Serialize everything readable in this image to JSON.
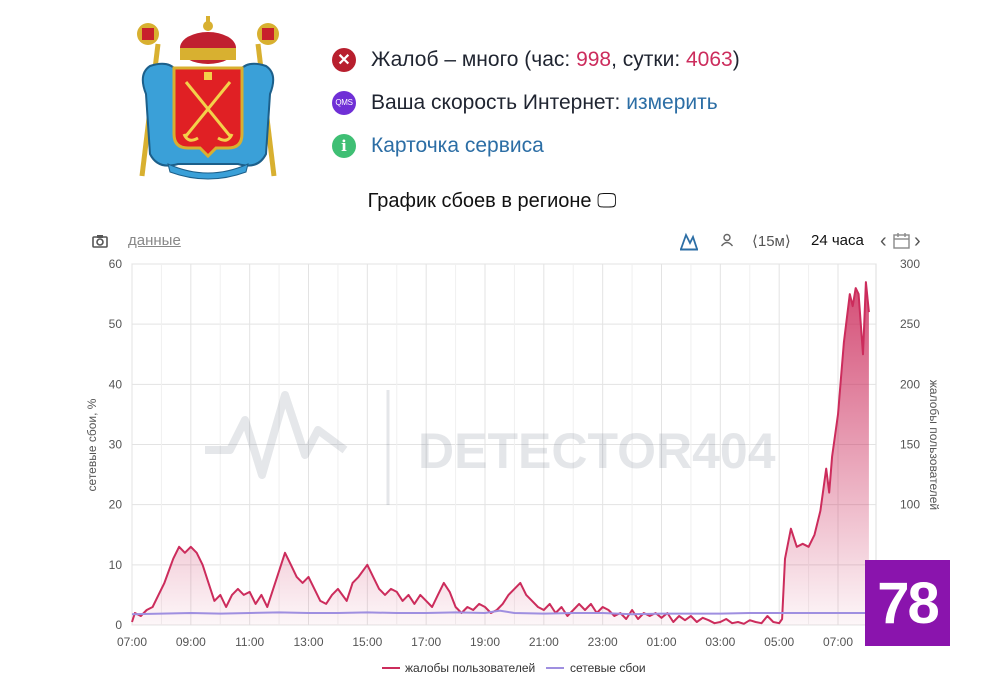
{
  "status": {
    "complaints_prefix": "Жалоб – много (час: ",
    "hour_count": "998",
    "sep": ", сутки: ",
    "day_count": "4063",
    "suffix": ")",
    "speed_label": "Ваша скорость Интернет: ",
    "speed_link": "измерить",
    "service_card": "Карточка сервиса",
    "qms_badge": "QMS",
    "x_badge": "✕",
    "i_badge": "i"
  },
  "toolbar": {
    "data_link": "данные",
    "interval": "⟨15м⟩",
    "range": "24 часа",
    "prev": "‹",
    "next": "›"
  },
  "logo": {
    "text": "78"
  },
  "watermark": {
    "text": "DETECTOR404"
  },
  "chart_data": {
    "type": "line",
    "title": "График сбоев в регионе 🖵",
    "ylabel_left": "сетевые сбои, %",
    "ylabel_right": "жалобы пользователей",
    "ylim_left": [
      0,
      60
    ],
    "ylim_right": [
      0,
      300
    ],
    "yticks_left": [
      "0",
      "10",
      "20",
      "30",
      "40",
      "50",
      "60"
    ],
    "yticks_right": [
      "100",
      "150",
      "200",
      "250",
      "300"
    ],
    "xticks": [
      "07:00",
      "09:00",
      "11:00",
      "13:00",
      "15:00",
      "17:00",
      "19:00",
      "21:00",
      "23:00",
      "01:00",
      "03:00",
      "05:00",
      "07:00"
    ],
    "grid": true,
    "legend_position": "bottom",
    "series": [
      {
        "name": "жалобы пользователей",
        "color": "#cc2c5c",
        "axis": "left",
        "values": [
          [
            0,
            0.5
          ],
          [
            0.1,
            2
          ],
          [
            0.3,
            1.5
          ],
          [
            0.5,
            2.5
          ],
          [
            0.7,
            3
          ],
          [
            0.9,
            5
          ],
          [
            1.1,
            7
          ],
          [
            1.4,
            11
          ],
          [
            1.6,
            13
          ],
          [
            1.8,
            12
          ],
          [
            2.0,
            13
          ],
          [
            2.2,
            12
          ],
          [
            2.4,
            10
          ],
          [
            2.6,
            7
          ],
          [
            2.8,
            4
          ],
          [
            3.0,
            5
          ],
          [
            3.2,
            3
          ],
          [
            3.4,
            5
          ],
          [
            3.6,
            6
          ],
          [
            3.8,
            5
          ],
          [
            4.0,
            5.5
          ],
          [
            4.2,
            3.5
          ],
          [
            4.4,
            5
          ],
          [
            4.6,
            3
          ],
          [
            4.8,
            6
          ],
          [
            5.0,
            9
          ],
          [
            5.2,
            12
          ],
          [
            5.4,
            10
          ],
          [
            5.6,
            8
          ],
          [
            5.8,
            7
          ],
          [
            6.0,
            8
          ],
          [
            6.2,
            6
          ],
          [
            6.4,
            4
          ],
          [
            6.6,
            3.5
          ],
          [
            6.8,
            5
          ],
          [
            7.0,
            6
          ],
          [
            7.3,
            4
          ],
          [
            7.5,
            7
          ],
          [
            7.7,
            8
          ],
          [
            8.0,
            10
          ],
          [
            8.2,
            8
          ],
          [
            8.4,
            6
          ],
          [
            8.6,
            5
          ],
          [
            8.8,
            6
          ],
          [
            9.0,
            5.5
          ],
          [
            9.2,
            4
          ],
          [
            9.4,
            5
          ],
          [
            9.6,
            3.5
          ],
          [
            9.8,
            5
          ],
          [
            10.0,
            4
          ],
          [
            10.2,
            3
          ],
          [
            10.4,
            5
          ],
          [
            10.6,
            7
          ],
          [
            10.8,
            5.5
          ],
          [
            11.0,
            3
          ],
          [
            11.2,
            2
          ],
          [
            11.4,
            3
          ],
          [
            11.6,
            2.5
          ],
          [
            11.8,
            3.5
          ],
          [
            12.0,
            3
          ],
          [
            12.2,
            2
          ],
          [
            12.4,
            2.5
          ],
          [
            12.6,
            3.5
          ],
          [
            12.8,
            5
          ],
          [
            13.0,
            6
          ],
          [
            13.2,
            7
          ],
          [
            13.4,
            5
          ],
          [
            13.6,
            4
          ],
          [
            13.8,
            3
          ],
          [
            14.0,
            2.5
          ],
          [
            14.2,
            3.5
          ],
          [
            14.4,
            2
          ],
          [
            14.6,
            3
          ],
          [
            14.8,
            1.5
          ],
          [
            15.0,
            2.5
          ],
          [
            15.2,
            3.5
          ],
          [
            15.4,
            2.5
          ],
          [
            15.6,
            3.5
          ],
          [
            15.8,
            2
          ],
          [
            16.0,
            3
          ],
          [
            16.2,
            2.5
          ],
          [
            16.4,
            1.5
          ],
          [
            16.6,
            2
          ],
          [
            16.8,
            1
          ],
          [
            17.0,
            2.5
          ],
          [
            17.2,
            1
          ],
          [
            17.4,
            2
          ],
          [
            17.6,
            1.5
          ],
          [
            17.8,
            2
          ],
          [
            18.0,
            1.2
          ],
          [
            18.2,
            2
          ],
          [
            18.4,
            0.5
          ],
          [
            18.6,
            1.5
          ],
          [
            18.8,
            0.8
          ],
          [
            19.0,
            1.5
          ],
          [
            19.2,
            0.5
          ],
          [
            19.4,
            1.2
          ],
          [
            19.6,
            0.8
          ],
          [
            19.8,
            0.3
          ],
          [
            20.0,
            0.5
          ],
          [
            20.2,
            1
          ],
          [
            20.4,
            0.3
          ],
          [
            20.6,
            0.5
          ],
          [
            20.8,
            0.2
          ],
          [
            21.0,
            0.8
          ],
          [
            21.2,
            0.5
          ],
          [
            21.4,
            0.3
          ],
          [
            21.6,
            1.5
          ],
          [
            21.8,
            0.5
          ],
          [
            22.0,
            0.3
          ],
          [
            22.1,
            1
          ],
          [
            22.2,
            11
          ],
          [
            22.4,
            16
          ],
          [
            22.6,
            13
          ],
          [
            22.8,
            13.5
          ],
          [
            23.0,
            13
          ],
          [
            23.2,
            15
          ],
          [
            23.4,
            19
          ],
          [
            23.6,
            26
          ],
          [
            23.7,
            22
          ],
          [
            23.8,
            28
          ],
          [
            24.0,
            35
          ],
          [
            24.2,
            47
          ],
          [
            24.4,
            55
          ],
          [
            24.5,
            53
          ],
          [
            24.6,
            56
          ],
          [
            24.7,
            55
          ],
          [
            24.85,
            45
          ],
          [
            24.95,
            57
          ],
          [
            25.05,
            52
          ]
        ]
      },
      {
        "name": "сетевые сбои",
        "color": "#9f8fe0",
        "axis": "left",
        "values": [
          [
            0,
            1.8
          ],
          [
            1,
            1.9
          ],
          [
            2,
            2.0
          ],
          [
            3,
            1.9
          ],
          [
            4,
            2.0
          ],
          [
            5,
            2.1
          ],
          [
            6,
            2.0
          ],
          [
            7,
            2.0
          ],
          [
            8,
            2.1
          ],
          [
            9,
            2.0
          ],
          [
            10,
            2.0
          ],
          [
            11,
            2.1
          ],
          [
            12,
            2.0
          ],
          [
            12.5,
            2.4
          ],
          [
            13,
            2.0
          ],
          [
            14,
            1.9
          ],
          [
            15,
            2.0
          ],
          [
            16,
            2.0
          ],
          [
            17,
            1.8
          ],
          [
            18,
            1.9
          ],
          [
            19,
            1.9
          ],
          [
            20,
            1.9
          ],
          [
            21,
            2.0
          ],
          [
            22,
            2.0
          ],
          [
            23,
            2.0
          ],
          [
            24,
            2.0
          ],
          [
            25,
            2.0
          ]
        ]
      }
    ]
  }
}
